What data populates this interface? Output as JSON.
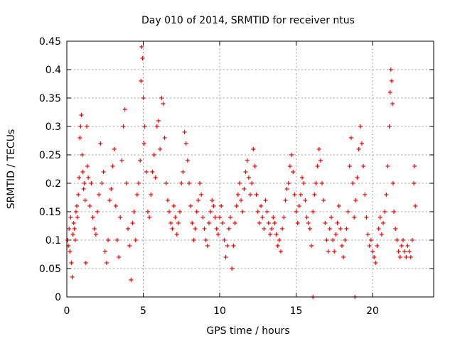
{
  "chart_data": {
    "type": "scatter",
    "title": "Day 010 of 2014, SRMTID for receiver ntus",
    "xlabel": "GPS time / hours",
    "ylabel": "SRMTID / TECUs",
    "xlim": [
      0,
      24
    ],
    "ylim": [
      0,
      0.45
    ],
    "xticks": [
      0,
      5,
      10,
      15,
      20
    ],
    "xtick_labels": [
      "0",
      "5",
      "10",
      "15",
      "20"
    ],
    "yticks": [
      0,
      0.05,
      0.1,
      0.15,
      0.2,
      0.25,
      0.3,
      0.35,
      0.4,
      0.45
    ],
    "ytick_labels": [
      "0",
      "0.05",
      "0.1",
      "0.15",
      "0.2",
      "0.25",
      "0.3",
      "0.35",
      "0.4",
      "0.45"
    ],
    "grid": true,
    "marker": "+",
    "color": "#ff0000",
    "series": [
      {
        "name": "SRMTID",
        "points": [
          [
            0.05,
            0.1
          ],
          [
            0.1,
            0.09
          ],
          [
            0.15,
            0.12
          ],
          [
            0.2,
            0.08
          ],
          [
            0.25,
            0.14
          ],
          [
            0.3,
            0.06
          ],
          [
            0.35,
            0.035
          ],
          [
            0.4,
            0.11
          ],
          [
            0.45,
            0.13
          ],
          [
            0.5,
            0.12
          ],
          [
            0.55,
            0.1
          ],
          [
            0.6,
            0.15
          ],
          [
            0.65,
            0.16
          ],
          [
            0.7,
            0.14
          ],
          [
            0.75,
            0.18
          ],
          [
            0.8,
            0.21
          ],
          [
            0.85,
            0.28
          ],
          [
            0.9,
            0.3
          ],
          [
            0.95,
            0.32
          ],
          [
            1.0,
            0.25
          ],
          [
            1.05,
            0.22
          ],
          [
            1.1,
            0.19
          ],
          [
            1.15,
            0.2
          ],
          [
            1.2,
            0.17
          ],
          [
            1.25,
            0.06
          ],
          [
            1.3,
            0.3
          ],
          [
            1.35,
            0.23
          ],
          [
            1.4,
            0.21
          ],
          [
            1.5,
            0.16
          ],
          [
            1.6,
            0.2
          ],
          [
            1.7,
            0.14
          ],
          [
            1.8,
            0.12
          ],
          [
            1.9,
            0.11
          ],
          [
            2.0,
            0.15
          ],
          [
            2.1,
            0.18
          ],
          [
            2.2,
            0.27
          ],
          [
            2.3,
            0.2
          ],
          [
            2.4,
            0.22
          ],
          [
            2.5,
            0.08
          ],
          [
            2.6,
            0.06
          ],
          [
            2.7,
            0.1
          ],
          [
            2.8,
            0.17
          ],
          [
            2.9,
            0.19
          ],
          [
            3.0,
            0.23
          ],
          [
            3.1,
            0.26
          ],
          [
            3.2,
            0.16
          ],
          [
            3.3,
            0.1
          ],
          [
            3.4,
            0.07
          ],
          [
            3.5,
            0.14
          ],
          [
            3.6,
            0.24
          ],
          [
            3.7,
            0.3
          ],
          [
            3.8,
            0.33
          ],
          [
            3.9,
            0.2
          ],
          [
            4.0,
            0.12
          ],
          [
            4.1,
            0.09
          ],
          [
            4.2,
            0.03
          ],
          [
            4.3,
            0.13
          ],
          [
            4.4,
            0.15
          ],
          [
            4.5,
            0.1
          ],
          [
            4.6,
            0.18
          ],
          [
            4.7,
            0.2
          ],
          [
            4.8,
            0.24
          ],
          [
            4.85,
            0.38
          ],
          [
            4.9,
            0.44
          ],
          [
            4.95,
            0.42
          ],
          [
            5.0,
            0.35
          ],
          [
            5.05,
            0.27
          ],
          [
            5.1,
            0.3
          ],
          [
            5.2,
            0.22
          ],
          [
            5.3,
            0.15
          ],
          [
            5.4,
            0.14
          ],
          [
            5.5,
            0.18
          ],
          [
            5.6,
            0.22
          ],
          [
            5.7,
            0.25
          ],
          [
            5.8,
            0.21
          ],
          [
            5.9,
            0.3
          ],
          [
            6.0,
            0.31
          ],
          [
            6.1,
            0.26
          ],
          [
            6.2,
            0.35
          ],
          [
            6.3,
            0.34
          ],
          [
            6.4,
            0.28
          ],
          [
            6.5,
            0.2
          ],
          [
            6.6,
            0.17
          ],
          [
            6.7,
            0.15
          ],
          [
            6.8,
            0.13
          ],
          [
            6.9,
            0.12
          ],
          [
            7.0,
            0.16
          ],
          [
            7.1,
            0.14
          ],
          [
            7.2,
            0.11
          ],
          [
            7.3,
            0.13
          ],
          [
            7.4,
            0.15
          ],
          [
            7.5,
            0.2
          ],
          [
            7.6,
            0.22
          ],
          [
            7.7,
            0.29
          ],
          [
            7.8,
            0.27
          ],
          [
            7.9,
            0.24
          ],
          [
            8.0,
            0.2
          ],
          [
            8.1,
            0.16
          ],
          [
            8.2,
            0.13
          ],
          [
            8.3,
            0.1
          ],
          [
            8.4,
            0.12
          ],
          [
            8.5,
            0.15
          ],
          [
            8.6,
            0.17
          ],
          [
            8.7,
            0.2
          ],
          [
            8.8,
            0.18
          ],
          [
            8.9,
            0.14
          ],
          [
            9.0,
            0.12
          ],
          [
            9.1,
            0.1
          ],
          [
            9.2,
            0.09
          ],
          [
            9.3,
            0.13
          ],
          [
            9.4,
            0.15
          ],
          [
            9.5,
            0.17
          ],
          [
            9.6,
            0.16
          ],
          [
            9.7,
            0.14
          ],
          [
            9.8,
            0.12
          ],
          [
            9.9,
            0.11
          ],
          [
            10.0,
            0.14
          ],
          [
            10.1,
            0.16
          ],
          [
            10.2,
            0.13
          ],
          [
            10.3,
            0.1
          ],
          [
            10.4,
            0.07
          ],
          [
            10.5,
            0.09
          ],
          [
            10.6,
            0.12
          ],
          [
            10.7,
            0.14
          ],
          [
            10.8,
            0.05
          ],
          [
            10.9,
            0.09
          ],
          [
            11.0,
            0.13
          ],
          [
            11.1,
            0.16
          ],
          [
            11.2,
            0.18
          ],
          [
            11.3,
            0.2
          ],
          [
            11.4,
            0.17
          ],
          [
            11.5,
            0.15
          ],
          [
            11.6,
            0.19
          ],
          [
            11.7,
            0.22
          ],
          [
            11.8,
            0.24
          ],
          [
            11.9,
            0.21
          ],
          [
            12.0,
            0.18
          ],
          [
            12.1,
            0.2
          ],
          [
            12.2,
            0.26
          ],
          [
            12.3,
            0.23
          ],
          [
            12.4,
            0.18
          ],
          [
            12.5,
            0.15
          ],
          [
            12.6,
            0.13
          ],
          [
            12.7,
            0.16
          ],
          [
            12.8,
            0.14
          ],
          [
            12.9,
            0.12
          ],
          [
            13.0,
            0.17
          ],
          [
            13.1,
            0.15
          ],
          [
            13.2,
            0.13
          ],
          [
            13.3,
            0.11
          ],
          [
            13.4,
            0.12
          ],
          [
            13.5,
            0.14
          ],
          [
            13.6,
            0.13
          ],
          [
            13.7,
            0.11
          ],
          [
            13.8,
            0.09
          ],
          [
            13.9,
            0.1
          ],
          [
            14.0,
            0.08
          ],
          [
            14.1,
            0.12
          ],
          [
            14.2,
            0.14
          ],
          [
            14.3,
            0.17
          ],
          [
            14.4,
            0.19
          ],
          [
            14.5,
            0.2
          ],
          [
            14.6,
            0.23
          ],
          [
            14.7,
            0.25
          ],
          [
            14.8,
            0.22
          ],
          [
            14.9,
            0.18
          ],
          [
            15.0,
            0.15
          ],
          [
            15.1,
            0.13
          ],
          [
            15.2,
            0.16
          ],
          [
            15.3,
            0.18
          ],
          [
            15.4,
            0.21
          ],
          [
            15.5,
            0.2
          ],
          [
            15.6,
            0.17
          ],
          [
            15.7,
            0.14
          ],
          [
            15.8,
            0.13
          ],
          [
            15.9,
            0.12
          ],
          [
            16.0,
            0.09
          ],
          [
            16.1,
            0.15
          ],
          [
            16.2,
            0.18
          ],
          [
            16.3,
            0.2
          ],
          [
            16.4,
            0.23
          ],
          [
            16.5,
            0.26
          ],
          [
            16.6,
            0.24
          ],
          [
            16.7,
            0.2
          ],
          [
            16.8,
            0.17
          ],
          [
            16.9,
            0.13
          ],
          [
            17.0,
            0.1
          ],
          [
            17.1,
            0.08
          ],
          [
            17.2,
            0.12
          ],
          [
            17.3,
            0.14
          ],
          [
            17.4,
            0.1
          ],
          [
            17.5,
            0.08
          ],
          [
            17.6,
            0.11
          ],
          [
            17.7,
            0.13
          ],
          [
            17.8,
            0.16
          ],
          [
            17.9,
            0.12
          ],
          [
            18.0,
            0.09
          ],
          [
            18.1,
            0.07
          ],
          [
            18.2,
            0.1
          ],
          [
            18.3,
            0.12
          ],
          [
            18.4,
            0.15
          ],
          [
            18.5,
            0.23
          ],
          [
            18.6,
            0.28
          ],
          [
            18.7,
            0.2
          ],
          [
            18.8,
            0.14
          ],
          [
            18.9,
            0.17
          ],
          [
            19.0,
            0.21
          ],
          [
            19.1,
            0.26
          ],
          [
            19.2,
            0.3
          ],
          [
            19.3,
            0.27
          ],
          [
            19.4,
            0.23
          ],
          [
            19.5,
            0.18
          ],
          [
            19.6,
            0.14
          ],
          [
            19.7,
            0.11
          ],
          [
            19.8,
            0.09
          ],
          [
            19.9,
            0.1
          ],
          [
            20.0,
            0.08
          ],
          [
            20.1,
            0.07
          ],
          [
            20.2,
            0.06
          ],
          [
            20.3,
            0.09
          ],
          [
            20.4,
            0.12
          ],
          [
            20.5,
            0.14
          ],
          [
            20.6,
            0.11
          ],
          [
            20.7,
            0.13
          ],
          [
            20.8,
            0.15
          ],
          [
            20.9,
            0.18
          ],
          [
            21.0,
            0.23
          ],
          [
            21.1,
            0.3
          ],
          [
            21.15,
            0.36
          ],
          [
            21.2,
            0.4
          ],
          [
            21.25,
            0.38
          ],
          [
            21.3,
            0.34
          ],
          [
            21.35,
            0.2
          ],
          [
            21.4,
            0.15
          ],
          [
            21.5,
            0.12
          ],
          [
            21.6,
            0.1
          ],
          [
            21.7,
            0.08
          ],
          [
            21.8,
            0.07
          ],
          [
            21.9,
            0.09
          ],
          [
            22.0,
            0.1
          ],
          [
            22.1,
            0.08
          ],
          [
            22.2,
            0.07
          ],
          [
            22.3,
            0.09
          ],
          [
            22.4,
            0.08
          ],
          [
            22.5,
            0.07
          ],
          [
            22.6,
            0.1
          ],
          [
            22.7,
            0.2
          ],
          [
            22.75,
            0.23
          ],
          [
            22.8,
            0.16
          ],
          [
            16.1,
            0.0
          ],
          [
            18.85,
            0.0
          ]
        ]
      }
    ]
  }
}
